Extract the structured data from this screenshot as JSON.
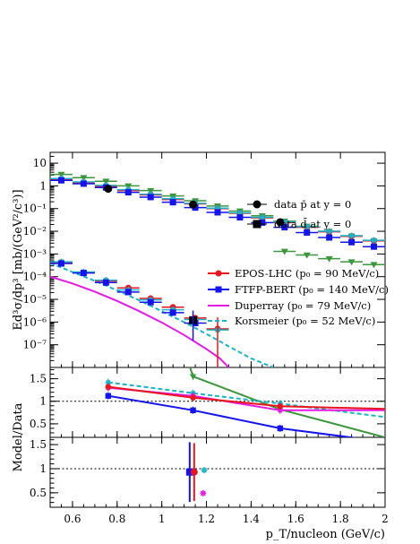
{
  "chart_data": [
    {
      "id": "spectrum",
      "type": "scatter",
      "log_y": true,
      "xlim": [
        0.5,
        2.0
      ],
      "ylim": [
        1e-08,
        30
      ],
      "ylabel": "Ed³σ/dp³ [mb/(GeV²/c³)]",
      "y_ticks": [
        {
          "v": 10,
          "l": "10"
        },
        {
          "v": 1,
          "l": "1"
        },
        {
          "v": 0.1,
          "l": "10⁻¹"
        },
        {
          "v": 0.01,
          "l": "10⁻²"
        },
        {
          "v": 0.001,
          "l": "10⁻³"
        },
        {
          "v": 0.0001,
          "l": "10⁻⁴"
        },
        {
          "v": 1e-05,
          "l": "10⁻⁵"
        },
        {
          "v": 1e-06,
          "l": "10⁻⁶"
        },
        {
          "v": 1e-07,
          "l": "10⁻⁷"
        }
      ],
      "colors": {
        "data": "#000000",
        "epos": "#e8141e",
        "ftfp": "#1414f0",
        "duperray": "#e619e6",
        "korsmeier": "#19b4c8",
        "green": "#3c963c"
      },
      "series": [
        {
          "key": "green_pbar",
          "marker": "triangle-down",
          "color": "#3c963c",
          "points": [
            [
              0.55,
              3.2
            ],
            [
              0.65,
              2.3
            ],
            [
              0.75,
              1.6
            ],
            [
              0.85,
              1.0
            ],
            [
              0.95,
              0.62
            ],
            [
              1.05,
              0.36
            ],
            [
              1.15,
              0.22
            ],
            [
              1.25,
              0.13
            ],
            [
              1.35,
              0.078
            ],
            [
              1.45,
              0.048
            ],
            [
              1.55,
              0.028
            ],
            [
              1.65,
              0.0165
            ],
            [
              1.75,
              0.0099
            ],
            [
              1.85,
              0.0061
            ],
            [
              1.95,
              0.0038
            ]
          ]
        },
        {
          "key": "epos_pbar",
          "marker": "circle",
          "color": "#e8141e",
          "points": [
            [
              0.55,
              1.9
            ],
            [
              0.65,
              1.35
            ],
            [
              0.75,
              0.95
            ],
            [
              0.85,
              0.62
            ],
            [
              0.95,
              0.4
            ],
            [
              1.05,
              0.25
            ],
            [
              1.15,
              0.16
            ],
            [
              1.25,
              0.1
            ],
            [
              1.35,
              0.062
            ],
            [
              1.45,
              0.039
            ],
            [
              1.55,
              0.024
            ],
            [
              1.65,
              0.015
            ],
            [
              1.75,
              0.0095
            ],
            [
              1.85,
              0.006
            ],
            [
              1.95,
              0.0038
            ]
          ]
        },
        {
          "key": "cyan_pbar",
          "marker": "star",
          "color": "#19b4c8",
          "points": [
            [
              0.55,
              2.1
            ],
            [
              0.65,
              1.5
            ],
            [
              0.75,
              1.05
            ],
            [
              0.85,
              0.68
            ],
            [
              0.95,
              0.43
            ],
            [
              1.05,
              0.27
            ],
            [
              1.15,
              0.17
            ],
            [
              1.25,
              0.105
            ],
            [
              1.35,
              0.065
            ],
            [
              1.45,
              0.041
            ],
            [
              1.55,
              0.026
            ],
            [
              1.65,
              0.016
            ],
            [
              1.75,
              0.01
            ],
            [
              1.85,
              0.0064
            ],
            [
              1.95,
              0.004
            ]
          ]
        },
        {
          "key": "ftfp_pbar",
          "marker": "square",
          "color": "#1414f0",
          "points": [
            [
              0.55,
              1.75
            ],
            [
              0.65,
              1.25
            ],
            [
              0.75,
              0.85
            ],
            [
              0.85,
              0.52
            ],
            [
              0.95,
              0.32
            ],
            [
              1.05,
              0.19
            ],
            [
              1.15,
              0.11
            ],
            [
              1.25,
              0.068
            ],
            [
              1.35,
              0.041
            ],
            [
              1.45,
              0.024
            ],
            [
              1.55,
              0.015
            ],
            [
              1.65,
              0.0088
            ],
            [
              1.75,
              0.0053
            ],
            [
              1.85,
              0.0033
            ],
            [
              1.95,
              0.0021
            ]
          ]
        },
        {
          "key": "data_pbar",
          "marker": "circle",
          "color": "#000000",
          "points": [
            [
              0.76,
              0.75
            ],
            [
              1.14,
              0.15
            ],
            [
              1.53,
              0.025
            ]
          ]
        },
        {
          "key": "green_d",
          "marker": "triangle-down",
          "color": "#3c963c",
          "points": [
            [
              1.55,
              0.0013
            ],
            [
              1.65,
              0.0009
            ],
            [
              1.75,
              0.00062
            ],
            [
              1.85,
              0.00045
            ],
            [
              1.95,
              0.00034
            ]
          ]
        },
        {
          "key": "epos_d",
          "marker": "circle",
          "color": "#e8141e",
          "points": [
            [
              0.55,
              0.00042
            ],
            [
              0.65,
              0.00015
            ],
            [
              0.75,
              6.5e-05
            ],
            [
              0.85,
              3.2e-05
            ],
            [
              0.95,
              1.1e-05
            ],
            [
              1.05,
              4.5e-06
            ],
            [
              1.15,
              1.5e-06
            ],
            [
              1.25,
              5e-07
            ]
          ]
        },
        {
          "key": "cyan_d",
          "marker": "star",
          "color": "#19b4c8",
          "points": [
            [
              0.55,
              0.00045
            ],
            [
              0.65,
              0.00016
            ],
            [
              0.75,
              7e-05
            ],
            [
              0.85,
              2.6e-05
            ],
            [
              0.95,
              9.5e-06
            ],
            [
              1.05,
              3.5e-06
            ],
            [
              1.15,
              1.3e-06
            ],
            [
              1.25,
              4.5e-07
            ]
          ]
        },
        {
          "key": "ftfp_d",
          "marker": "square",
          "color": "#1414f0",
          "points": [
            [
              0.55,
              0.00038
            ],
            [
              0.65,
              0.000145
            ],
            [
              0.75,
              5.5e-05
            ],
            [
              0.85,
              2.1e-05
            ],
            [
              0.95,
              7.5e-06
            ],
            [
              1.05,
              2.6e-06
            ],
            [
              1.15,
              9e-07
            ]
          ]
        },
        {
          "key": "data_d",
          "marker": "square",
          "color": "#000000",
          "points": [
            [
              1.14,
              1.2e-06
            ]
          ]
        }
      ],
      "curves": [
        {
          "key": "duperray",
          "color": "#e619e6",
          "dash": "",
          "points": [
            [
              0.5,
              0.0001
            ],
            [
              0.6,
              5e-05
            ],
            [
              0.7,
              2.2e-05
            ],
            [
              0.8,
              8.5e-06
            ],
            [
              0.9,
              3e-06
            ],
            [
              1.0,
              9.5e-07
            ],
            [
              1.1,
              2.7e-07
            ],
            [
              1.2,
              6.5e-08
            ],
            [
              1.26,
              2.5e-08
            ],
            [
              1.3,
              1e-08
            ]
          ]
        },
        {
          "key": "korsmeier",
          "color": "#19b4c8",
          "dash": "5,3",
          "points": [
            [
              0.5,
              0.0004
            ],
            [
              0.6,
              0.00016
            ],
            [
              0.7,
              6.5e-05
            ],
            [
              0.8,
              2.5e-05
            ],
            [
              0.9,
              9e-06
            ],
            [
              1.0,
              3e-06
            ],
            [
              1.1,
              1e-06
            ],
            [
              1.2,
              3e-07
            ],
            [
              1.3,
              8.5e-08
            ],
            [
              1.4,
              2.5e-08
            ],
            [
              1.5,
              1e-08
            ]
          ]
        }
      ],
      "legend": [
        {
          "key": "data_pbar",
          "label": "data p̄ at y = 0"
        },
        {
          "key": "data_d",
          "label": "data d̄ at y = 0"
        },
        {
          "key": "epos",
          "label": "EPOS-LHC (p₀ = 90 MeV/c)"
        },
        {
          "key": "ftfp",
          "label": "FTFP-BERT (p₀ = 140 MeV/c)"
        },
        {
          "key": "duperray",
          "label": "Duperray (p₀ = 79 MeV/c)"
        },
        {
          "key": "korsmeier",
          "label": "Korsmeier (p₀ = 52 MeV/c)"
        }
      ]
    },
    {
      "id": "ratio_pbar",
      "type": "line",
      "xlim": [
        0.5,
        2.0
      ],
      "ylim": [
        0.2,
        1.75
      ],
      "ylabel": "Model/Data",
      "y_ticks": [
        {
          "v": 0.5,
          "l": "0.5"
        },
        {
          "v": 1,
          "l": "1"
        },
        {
          "v": 1.5,
          "l": "1.5"
        }
      ],
      "reference_line": 1,
      "series": [
        {
          "key": "green",
          "color": "#3c963c",
          "points": [
            [
              1.12,
              1.85
            ],
            [
              1.14,
              1.55
            ],
            [
              1.53,
              0.82
            ],
            [
              2.0,
              0.2
            ]
          ]
        },
        {
          "key": "korsmeier",
          "color": "#19b4c8",
          "dash": "5,3",
          "points": [
            [
              0.76,
              1.42
            ],
            [
              1.14,
              1.18
            ],
            [
              1.53,
              0.95
            ],
            [
              2.0,
              0.65
            ]
          ]
        },
        {
          "key": "duperray",
          "color": "#e619e6",
          "points": [
            [
              0.76,
              1.3
            ],
            [
              1.14,
              1.12
            ],
            [
              1.53,
              0.8
            ],
            [
              2.0,
              0.8
            ]
          ]
        },
        {
          "key": "epos",
          "color": "#e8141e",
          "points": [
            [
              0.76,
              1.32
            ],
            [
              1.14,
              1.08
            ],
            [
              1.53,
              0.89
            ],
            [
              2.0,
              0.83
            ]
          ]
        },
        {
          "key": "ftfp",
          "color": "#1414f0",
          "points": [
            [
              0.76,
              1.12
            ],
            [
              1.14,
              0.8
            ],
            [
              1.53,
              0.4
            ],
            [
              2.0,
              0.1
            ]
          ]
        }
      ]
    },
    {
      "id": "ratio_d",
      "type": "scatter",
      "xlim": [
        0.5,
        2.0
      ],
      "ylim": [
        0.2,
        1.65
      ],
      "y_ticks": [
        {
          "v": 0.5,
          "l": "0.5"
        },
        {
          "v": 1,
          "l": "1"
        },
        {
          "v": 1.5,
          "l": "1.5"
        }
      ],
      "x_ticks": [
        {
          "v": 0.6,
          "l": "0.6"
        },
        {
          "v": 0.8,
          "l": "0.8"
        },
        {
          "v": 1,
          "l": "1"
        },
        {
          "v": 1.2,
          "l": "1.2"
        },
        {
          "v": 1.4,
          "l": "1.4"
        },
        {
          "v": 1.6,
          "l": "1.6"
        },
        {
          "v": 1.8,
          "l": "1.8"
        },
        {
          "v": 2,
          "l": "2"
        }
      ],
      "xlabel": "p_T/nucleon (GeV/c)",
      "reference_line": 1,
      "series": [
        {
          "key": "ftfp",
          "marker": "square",
          "color": "#1414f0",
          "x": 1.125,
          "y": 0.93,
          "err": 0.62
        },
        {
          "key": "epos",
          "marker": "circle",
          "color": "#e8141e",
          "x": 1.145,
          "y": 0.93,
          "err": 0.6
        },
        {
          "key": "cyan",
          "marker": "star",
          "color": "#19b4c8",
          "x": 1.19,
          "y": 0.97,
          "err": 0.04
        },
        {
          "key": "magenta",
          "marker": "star",
          "color": "#e619e6",
          "x": 1.185,
          "y": 0.49,
          "err": 0.03
        }
      ]
    }
  ]
}
